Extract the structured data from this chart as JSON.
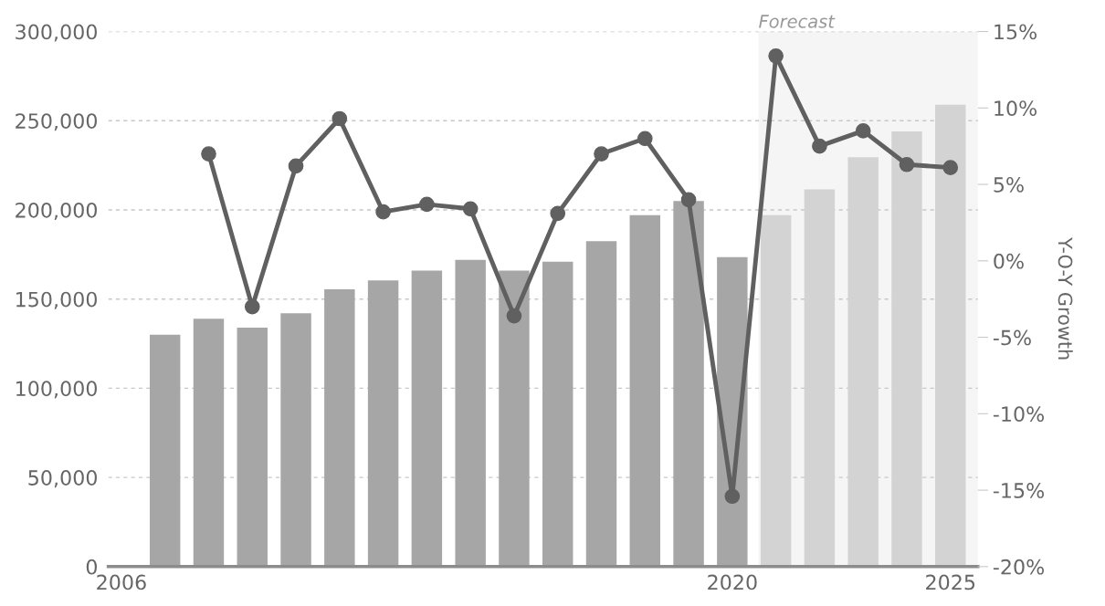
{
  "chart_data": {
    "type": "bar",
    "y2label": "Y-O-Y Growth",
    "series": [
      {
        "x": [
          2007,
          2008,
          2009,
          2010,
          2011,
          2012,
          2013,
          2014,
          2015,
          2016,
          2017,
          2018,
          2019,
          2020,
          2021,
          2022,
          2023,
          2024,
          2025
        ],
        "values": [
          130000,
          139000,
          134000,
          142000,
          155500,
          160500,
          166000,
          172000,
          166000,
          171000,
          182500,
          197000,
          205000,
          173500,
          197000,
          211500,
          229500,
          244000,
          259000
        ],
        "colors": [
          "#a6a6a6",
          "#a6a6a6",
          "#a6a6a6",
          "#a6a6a6",
          "#a6a6a6",
          "#a6a6a6",
          "#a6a6a6",
          "#a6a6a6",
          "#a6a6a6",
          "#a6a6a6",
          "#a6a6a6",
          "#a6a6a6",
          "#a6a6a6",
          "#a6a6a6",
          "#d3d3d3",
          "#d3d3d3",
          "#d3d3d3",
          "#d3d3d3",
          "#d3d3d3"
        ]
      },
      {
        "type": "line",
        "axis": "y2",
        "color": "#606060",
        "marker": "circle",
        "x": [
          2008,
          2009,
          2010,
          2011,
          2012,
          2013,
          2014,
          2015,
          2016,
          2017,
          2018,
          2019,
          2020,
          2021,
          2022,
          2023,
          2024,
          2025
        ],
        "values": [
          7.0,
          -3.0,
          6.2,
          9.3,
          3.2,
          3.7,
          3.4,
          -3.6,
          3.1,
          7.0,
          8.0,
          4.0,
          -15.4,
          13.4,
          7.5,
          8.5,
          6.3,
          6.1
        ]
      }
    ],
    "xlim": [
      2005.7,
      2025.63
    ],
    "xticks": [
      2006,
      2020,
      2025
    ],
    "ylim": [
      0,
      300000
    ],
    "yticks": [
      0,
      {
        "value": 50000,
        "label": "50,000"
      },
      {
        "value": 100000,
        "label": "100,000"
      },
      {
        "value": 150000,
        "label": "150,000"
      },
      {
        "value": 200000,
        "label": "200,000"
      },
      {
        "value": 250000,
        "label": "250,000"
      },
      {
        "value": 300000,
        "label": "300,000"
      }
    ],
    "y2lim": [
      -20,
      15
    ],
    "y2ticks": [
      {
        "value": -20,
        "label": "-20%"
      },
      {
        "value": -15,
        "label": "-15%"
      },
      {
        "value": -10,
        "label": "-10%"
      },
      {
        "value": -5,
        "label": "-5%"
      },
      {
        "value": 0,
        "label": "0%"
      },
      {
        "value": 5,
        "label": "5%"
      },
      {
        "value": 10,
        "label": "10%"
      },
      {
        "value": 15,
        "label": "15%"
      }
    ],
    "bands": [
      {
        "axis": "x",
        "from": 2020.6,
        "to": 2025.63,
        "label": "Forecast",
        "color": "#f5f5f5"
      }
    ],
    "grid": "y"
  }
}
